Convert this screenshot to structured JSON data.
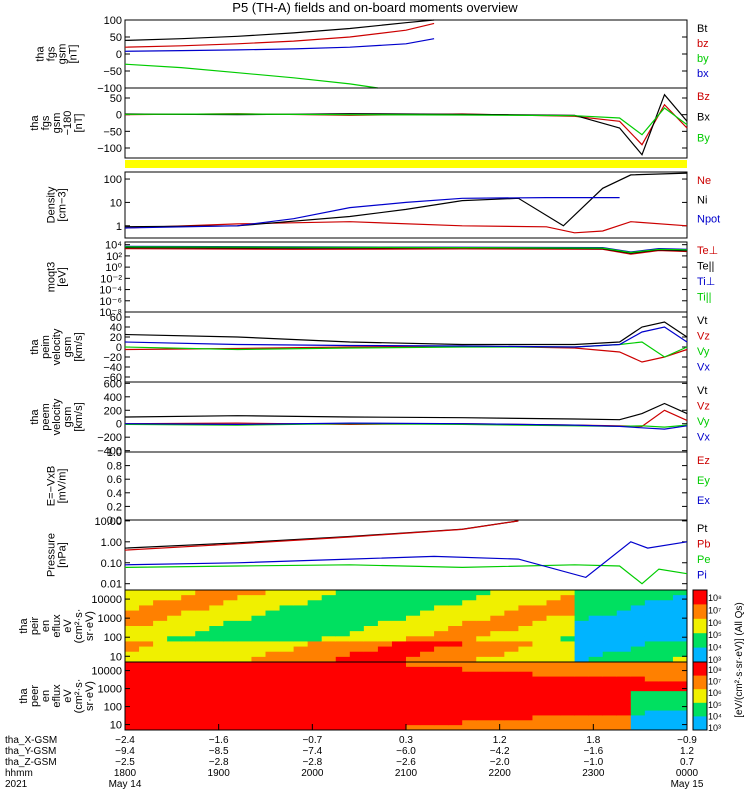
{
  "title": "P5 (TH-A) fields and on-board moments overview",
  "chart_data": [
    {
      "type": "line",
      "name_lines": [
        "tha",
        "fgs",
        "gsm",
        "[nT]"
      ],
      "ylim": [
        -100,
        100
      ],
      "ticks": [
        "100",
        "50",
        "0",
        "−50",
        "−100"
      ],
      "tick_values": [
        100,
        50,
        0,
        -50,
        -100
      ],
      "series": [
        {
          "name": "Bt",
          "color": "#000000",
          "x": [
            0,
            0.1,
            0.2,
            0.3,
            0.4,
            0.5,
            0.55
          ],
          "y": [
            40,
            45,
            52,
            62,
            75,
            92,
            100
          ]
        },
        {
          "name": "bz",
          "color": "#cc0000",
          "x": [
            0,
            0.1,
            0.2,
            0.3,
            0.4,
            0.5,
            0.55
          ],
          "y": [
            20,
            24,
            30,
            38,
            50,
            70,
            90
          ]
        },
        {
          "name": "by",
          "color": "#00cc00",
          "x": [
            0,
            0.1,
            0.2,
            0.3,
            0.4,
            0.45
          ],
          "y": [
            -30,
            -40,
            -55,
            -70,
            -88,
            -100
          ]
        },
        {
          "name": "bx",
          "color": "#0000cc",
          "x": [
            0,
            0.1,
            0.2,
            0.3,
            0.4,
            0.5,
            0.55
          ],
          "y": [
            8,
            10,
            12,
            15,
            20,
            30,
            45
          ]
        }
      ]
    },
    {
      "type": "line",
      "name_lines": [
        "tha",
        "fgs",
        "gsm",
        "−180",
        "[nT]"
      ],
      "ylim": [
        -130,
        80
      ],
      "ticks": [
        "50",
        "0",
        "−50",
        "−100"
      ],
      "tick_values": [
        50,
        0,
        -50,
        -100
      ],
      "series": [
        {
          "name": "Bz",
          "color": "#cc0000",
          "x": [
            0,
            0.2,
            0.4,
            0.6,
            0.8,
            0.88,
            0.92,
            0.96,
            1
          ],
          "y": [
            0,
            3,
            -2,
            2,
            -5,
            -20,
            -90,
            30,
            -40
          ]
        },
        {
          "name": "Bx",
          "color": "#000000",
          "x": [
            0,
            0.2,
            0.4,
            0.6,
            0.8,
            0.88,
            0.92,
            0.96,
            1
          ],
          "y": [
            2,
            0,
            3,
            1,
            -2,
            -40,
            -120,
            60,
            -20
          ]
        },
        {
          "name": "By",
          "color": "#00cc00",
          "x": [
            0,
            0.2,
            0.4,
            0.6,
            0.8,
            0.88,
            0.92,
            0.96,
            1
          ],
          "y": [
            1,
            2,
            0,
            -1,
            -3,
            -10,
            -60,
            20,
            -30
          ]
        }
      ]
    },
    {
      "type": "line",
      "name_lines": [
        "Density",
        "[cm−3]"
      ],
      "log": true,
      "ylim": [
        0.3,
        200
      ],
      "ticks": [
        "100",
        "10",
        "1"
      ],
      "tick_values": [
        100,
        10,
        1
      ],
      "series": [
        {
          "name": "Ne",
          "color": "#cc0000",
          "x": [
            0,
            0.2,
            0.4,
            0.6,
            0.75,
            0.8,
            0.85,
            0.9,
            1
          ],
          "y": [
            0.8,
            1.2,
            1.5,
            1.0,
            0.9,
            0.5,
            0.6,
            1.5,
            1.0
          ]
        },
        {
          "name": "Ni",
          "color": "#000000",
          "x": [
            0,
            0.2,
            0.4,
            0.5,
            0.6,
            0.7,
            0.78,
            0.85,
            0.9,
            1
          ],
          "y": [
            0.9,
            1.0,
            2.5,
            5,
            12,
            15,
            1.0,
            40,
            150,
            180
          ]
        },
        {
          "name": "Npot",
          "color": "#0000cc",
          "x": [
            0,
            0.2,
            0.3,
            0.4,
            0.5,
            0.6,
            0.75,
            0.88
          ],
          "y": [
            0.8,
            1.0,
            2.0,
            6,
            10,
            15,
            16,
            16
          ]
        }
      ]
    },
    {
      "type": "line",
      "name_lines": [
        "moqt3",
        "[eV]"
      ],
      "log": true,
      "ylim": [
        1e-08,
        30000.0
      ],
      "ticks": [
        "10⁴",
        "10²",
        "10⁰",
        "10⁻²",
        "10⁻⁴",
        "10⁻⁶",
        "10⁻⁸"
      ],
      "tick_values": [
        10000.0,
        100.0,
        1,
        0.01,
        0.0001,
        1e-06,
        1e-08
      ],
      "series": [
        {
          "name": "Te⊥",
          "color": "#cc0000",
          "x": [
            0,
            0.3,
            0.6,
            0.85,
            0.9,
            0.95,
            1
          ],
          "y": [
            2000,
            1500,
            1800,
            1500,
            200,
            900,
            600
          ]
        },
        {
          "name": "Te||",
          "color": "#000000",
          "x": [
            0,
            0.3,
            0.6,
            0.85,
            0.9,
            0.95,
            1
          ],
          "y": [
            3000,
            2500,
            2800,
            2000,
            300,
            1200,
            800
          ]
        },
        {
          "name": "Ti⊥",
          "color": "#0000cc",
          "x": [
            0,
            0.3,
            0.6,
            0.85,
            0.9,
            0.95,
            1
          ],
          "y": [
            5000,
            4000,
            3500,
            3000,
            500,
            2000,
            1500
          ]
        },
        {
          "name": "Ti||",
          "color": "#00cc00",
          "x": [
            0,
            0.3,
            0.6,
            0.85,
            0.9,
            0.95,
            1
          ],
          "y": [
            4000,
            3500,
            3000,
            2500,
            400,
            1500,
            1200
          ]
        }
      ]
    },
    {
      "type": "line",
      "name_lines": [
        "tha",
        "peim",
        "velocity",
        "gsm",
        "[km/s]"
      ],
      "ylim": [
        -70,
        70
      ],
      "ticks": [
        "60",
        "40",
        "20",
        "0",
        "−20",
        "−40",
        "−60"
      ],
      "tick_values": [
        60,
        40,
        20,
        0,
        -20,
        -40,
        -60
      ],
      "series": [
        {
          "name": "Vt",
          "color": "#000000",
          "x": [
            0,
            0.2,
            0.4,
            0.6,
            0.8,
            0.88,
            0.92,
            0.96,
            1
          ],
          "y": [
            25,
            20,
            10,
            5,
            5,
            10,
            40,
            50,
            20
          ]
        },
        {
          "name": "Vz",
          "color": "#cc0000",
          "x": [
            0,
            0.2,
            0.4,
            0.6,
            0.8,
            0.88,
            0.92,
            0.96,
            1
          ],
          "y": [
            -5,
            -3,
            0,
            2,
            -2,
            -10,
            -30,
            -20,
            -5
          ]
        },
        {
          "name": "Vy",
          "color": "#00cc00",
          "x": [
            0,
            0.2,
            0.4,
            0.6,
            0.8,
            0.88,
            0.92,
            0.96,
            1
          ],
          "y": [
            0,
            -5,
            -2,
            0,
            0,
            5,
            10,
            -20,
            0
          ]
        },
        {
          "name": "Vx",
          "color": "#0000cc",
          "x": [
            0,
            0.2,
            0.4,
            0.6,
            0.8,
            0.88,
            0.92,
            0.96,
            1
          ],
          "y": [
            10,
            5,
            3,
            2,
            0,
            5,
            30,
            40,
            10
          ]
        }
      ]
    },
    {
      "type": "line",
      "name_lines": [
        "tha",
        "peem",
        "velocity",
        "gsm",
        "[km/s]"
      ],
      "ylim": [
        -420,
        620
      ],
      "ticks": [
        "600",
        "400",
        "200",
        "0",
        "−200",
        "−400"
      ],
      "tick_values": [
        600,
        400,
        200,
        0,
        -200,
        -400
      ],
      "series": [
        {
          "name": "Vt",
          "color": "#000000",
          "x": [
            0,
            0.2,
            0.4,
            0.6,
            0.8,
            0.88,
            0.92,
            0.96,
            1
          ],
          "y": [
            100,
            120,
            100,
            90,
            70,
            60,
            150,
            300,
            150
          ]
        },
        {
          "name": "Vz",
          "color": "#cc0000",
          "x": [
            0,
            0.2,
            0.4,
            0.6,
            0.8,
            0.88,
            0.92,
            0.96,
            1
          ],
          "y": [
            0,
            10,
            -10,
            0,
            -20,
            -30,
            -40,
            200,
            50
          ]
        },
        {
          "name": "Vy",
          "color": "#00cc00",
          "x": [
            0,
            0.2,
            0.4,
            0.6,
            0.8,
            0.88,
            0.92,
            0.96,
            1
          ],
          "y": [
            -10,
            -20,
            0,
            -10,
            -30,
            -40,
            -30,
            -50,
            -20
          ]
        },
        {
          "name": "Vx",
          "color": "#0000cc",
          "x": [
            0,
            0.2,
            0.4,
            0.6,
            0.8,
            0.88,
            0.92,
            0.96,
            1
          ],
          "y": [
            0,
            -10,
            10,
            0,
            -20,
            -40,
            -60,
            -80,
            -30
          ]
        }
      ]
    },
    {
      "type": "line",
      "name_lines": [
        "E=−VxB",
        "[mV/m]"
      ],
      "ylim": [
        0,
        1
      ],
      "ticks": [
        "1.0",
        "0.8",
        "0.6",
        "0.4",
        "0.2",
        "0.0"
      ],
      "tick_values": [
        1,
        0.8,
        0.6,
        0.4,
        0.2,
        0
      ],
      "series": [
        {
          "name": "Ez",
          "color": "#cc0000",
          "x": [],
          "y": []
        },
        {
          "name": "Ey",
          "color": "#00cc00",
          "x": [],
          "y": []
        },
        {
          "name": "Ex",
          "color": "#0000cc",
          "x": [],
          "y": []
        }
      ]
    },
    {
      "type": "line",
      "name_lines": [
        "Pressure",
        "[nPa]"
      ],
      "log": true,
      "ylim": [
        0.005,
        11
      ],
      "ticks": [
        "10.00",
        "1.00",
        "0.10",
        "0.01"
      ],
      "tick_values": [
        10,
        1,
        0.1,
        0.01
      ],
      "series": [
        {
          "name": "Pt",
          "color": "#000000",
          "x": [
            0,
            0.2,
            0.4,
            0.6,
            0.7
          ],
          "y": [
            0.5,
            0.9,
            1.8,
            4,
            10
          ]
        },
        {
          "name": "Pb",
          "color": "#cc0000",
          "x": [
            0,
            0.2,
            0.4,
            0.6,
            0.7
          ],
          "y": [
            0.4,
            0.8,
            1.7,
            3.9,
            10
          ]
        },
        {
          "name": "Pe",
          "color": "#00cc00",
          "x": [
            0,
            0.2,
            0.4,
            0.6,
            0.8,
            0.88,
            0.92,
            0.95,
            1
          ],
          "y": [
            0.06,
            0.07,
            0.08,
            0.06,
            0.08,
            0.07,
            0.01,
            0.05,
            0.03
          ]
        },
        {
          "name": "Pi",
          "color": "#0000cc",
          "x": [
            0,
            0.2,
            0.4,
            0.55,
            0.7,
            0.82,
            0.9,
            0.93,
            1
          ],
          "y": [
            0.08,
            0.1,
            0.15,
            0.2,
            0.15,
            0.02,
            1.0,
            0.5,
            1.0
          ]
        }
      ]
    },
    {
      "type": "heatmap",
      "name_lines": [
        "tha",
        "peir",
        "en",
        "eflux",
        "eV",
        "(cm²·s·",
        "sr·eV)"
      ],
      "log": true,
      "ylim": [
        5,
        30000
      ],
      "ticks": [
        "10000",
        "1000",
        "100",
        "10"
      ],
      "tick_values": [
        10000,
        1000,
        100,
        10
      ],
      "colorbar_ticks": [
        "10⁸",
        "10⁷",
        "10⁶",
        "10⁵",
        "10⁴",
        "10³"
      ]
    },
    {
      "type": "heatmap",
      "name_lines": [
        "tha",
        "peer",
        "en",
        "eflux",
        "eV",
        "(cm²·s·",
        "sr·eV)"
      ],
      "log": true,
      "ylim": [
        5,
        30000
      ],
      "ticks": [
        "10000",
        "1000",
        "100",
        "10"
      ],
      "tick_values": [
        10000,
        1000,
        100,
        10
      ],
      "colorbar_ticks": [
        "10⁸",
        "10⁷",
        "10⁶",
        "10⁵",
        "10⁴",
        "10³"
      ]
    }
  ],
  "colorbar_label": "[eV/(cm²·s·sr·eV)] (All Qs)",
  "x_axis": {
    "row_labels": [
      "tha_X-GSM",
      "tha_Y-GSM",
      "tha_Z-GSM",
      "hhmm",
      "2021"
    ],
    "columns": [
      [
        "−2.4",
        "−9.4",
        "−2.5",
        "1800",
        "May 14"
      ],
      [
        "−1.6",
        "−8.5",
        "−2.8",
        "1900",
        ""
      ],
      [
        "−0.7",
        "−7.4",
        "−2.8",
        "2000",
        ""
      ],
      [
        "0.3",
        "−6.0",
        "−2.6",
        "2100",
        ""
      ],
      [
        "1.2",
        "−4.2",
        "−2.0",
        "2200",
        ""
      ],
      [
        "1.8",
        "−1.6",
        "−1.0",
        "2300",
        ""
      ],
      [
        "−0.9",
        "1.2",
        "0.7",
        "0000",
        "May 15"
      ]
    ]
  }
}
